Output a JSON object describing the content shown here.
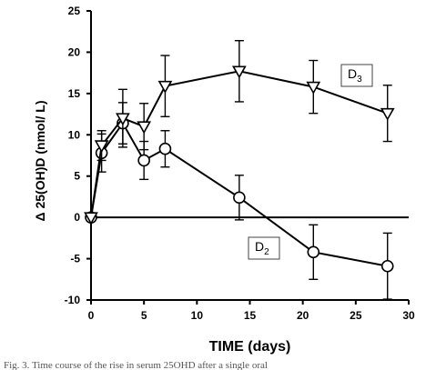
{
  "chart_data": {
    "type": "line",
    "xlabel": "TIME (days)",
    "ylabel": "Δ 25(OH)D (nmol/ L)",
    "xlim": [
      0,
      30
    ],
    "ylim": [
      -10,
      25
    ],
    "xticks": [
      0,
      5,
      10,
      15,
      20,
      25,
      30
    ],
    "yticks": [
      -10,
      -5,
      0,
      5,
      10,
      15,
      20,
      25
    ],
    "zero_line": true,
    "grid": false,
    "series": [
      {
        "name": "D3",
        "label_main": "D",
        "label_sub": "3",
        "marker": "triangle-down",
        "points": [
          {
            "x": 0,
            "y": 0,
            "err": 0
          },
          {
            "x": 1,
            "y": 8.7,
            "err": 1.8
          },
          {
            "x": 3,
            "y": 12.0,
            "err": 3.5
          },
          {
            "x": 5,
            "y": 11.0,
            "err": 2.8
          },
          {
            "x": 7,
            "y": 15.9,
            "err": 3.7
          },
          {
            "x": 14,
            "y": 17.7,
            "err": 3.7
          },
          {
            "x": 21,
            "y": 15.8,
            "err": 3.2
          },
          {
            "x": 28,
            "y": 12.6,
            "err": 3.4
          }
        ]
      },
      {
        "name": "D2",
        "label_main": "D",
        "label_sub": "2",
        "marker": "circle",
        "points": [
          {
            "x": 0,
            "y": 0,
            "err": 0
          },
          {
            "x": 1,
            "y": 7.8,
            "err": 2.3
          },
          {
            "x": 3,
            "y": 11.4,
            "err": 2.5
          },
          {
            "x": 5,
            "y": 6.9,
            "err": 2.3
          },
          {
            "x": 7,
            "y": 8.3,
            "err": 2.2
          },
          {
            "x": 14,
            "y": 2.4,
            "err": 2.7
          },
          {
            "x": 21,
            "y": -4.2,
            "err": 3.3
          },
          {
            "x": 28,
            "y": -5.9,
            "err": 4.0
          }
        ]
      }
    ],
    "caption_fragment": "Fig. 3. Time course of the rise in serum 25OHD after a single oral"
  }
}
